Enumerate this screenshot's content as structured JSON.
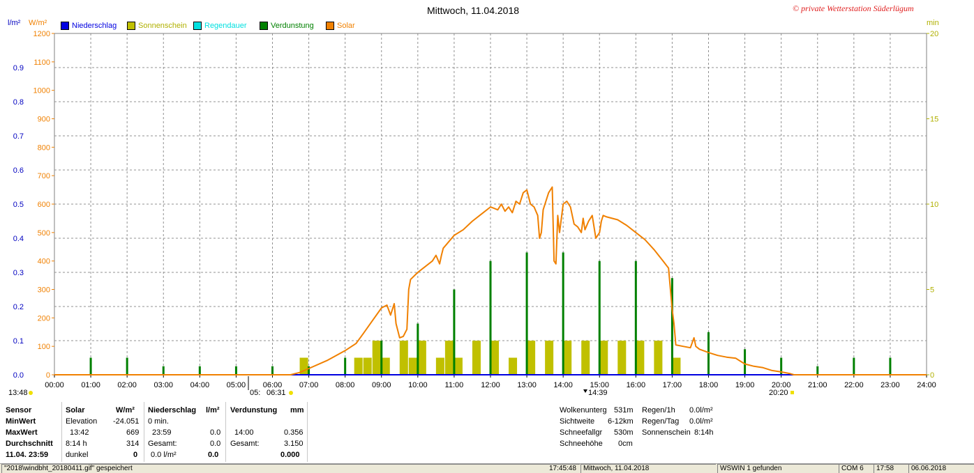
{
  "header": {
    "title": "Mittwoch, 11.04.2018",
    "copyright": "© private Wetterstation Süderlügum",
    "left_unit_1": "l/m²",
    "left_unit_2": "W/m²",
    "right_unit": "min"
  },
  "legend": [
    {
      "label": "Niederschlag",
      "color": "#0000e0"
    },
    {
      "label": "Sonnenschein",
      "color": "#c0c000"
    },
    {
      "label": "Regendauer",
      "color": "#00e0e0"
    },
    {
      "label": "Verdunstung",
      "color": "#008000"
    },
    {
      "label": "Solar",
      "color": "#f08000"
    }
  ],
  "chart_data": {
    "type": "line",
    "title": "Mittwoch, 11.04.2018",
    "x_range_hours": [
      0,
      24
    ],
    "x_tick_labels": [
      "00:00",
      "01:00",
      "02:00",
      "03:00",
      "04:00",
      "05:00",
      "06:00",
      "07:00",
      "08:00",
      "09:00",
      "10:00",
      "11:00",
      "12:00",
      "13:00",
      "14:00",
      "15:00",
      "16:00",
      "17:00",
      "18:00",
      "19:00",
      "20:00",
      "21:00",
      "22:00",
      "23:00",
      "24:00"
    ],
    "y_left_outer": {
      "unit": "l/m²",
      "range": [
        0,
        1.0
      ],
      "ticks": [
        "0.0",
        "0.1",
        "0.2",
        "0.3",
        "0.4",
        "0.5",
        "0.6",
        "0.7",
        "0.8",
        "0.9"
      ]
    },
    "y_left_inner": {
      "unit": "W/m²",
      "range": [
        0,
        1200
      ],
      "ticks": [
        "0",
        "100",
        "200",
        "300",
        "400",
        "500",
        "600",
        "700",
        "800",
        "900",
        "1000",
        "1100",
        "1200"
      ]
    },
    "y_right": {
      "unit": "min",
      "range": [
        0,
        20
      ],
      "ticks": [
        "0",
        "5",
        "10",
        "15",
        "20"
      ]
    },
    "grid": true,
    "series": [
      {
        "name": "Solar",
        "axis": "W/m²",
        "color": "#f08000",
        "points": [
          [
            0,
            0
          ],
          [
            6.5,
            0
          ],
          [
            6.75,
            8
          ],
          [
            7,
            22
          ],
          [
            7.5,
            50
          ],
          [
            8,
            85
          ],
          [
            8.3,
            110
          ],
          [
            8.5,
            145
          ],
          [
            8.75,
            190
          ],
          [
            9,
            235
          ],
          [
            9.15,
            245
          ],
          [
            9.25,
            210
          ],
          [
            9.35,
            250
          ],
          [
            9.4,
            180
          ],
          [
            9.5,
            130
          ],
          [
            9.6,
            135
          ],
          [
            9.7,
            160
          ],
          [
            9.75,
            300
          ],
          [
            9.8,
            335
          ],
          [
            10,
            360
          ],
          [
            10.2,
            380
          ],
          [
            10.4,
            400
          ],
          [
            10.5,
            420
          ],
          [
            10.55,
            405
          ],
          [
            10.6,
            390
          ],
          [
            10.65,
            420
          ],
          [
            10.7,
            445
          ],
          [
            10.8,
            460
          ],
          [
            11,
            490
          ],
          [
            11.25,
            510
          ],
          [
            11.5,
            540
          ],
          [
            11.75,
            565
          ],
          [
            12,
            590
          ],
          [
            12.1,
            585
          ],
          [
            12.2,
            580
          ],
          [
            12.3,
            600
          ],
          [
            12.4,
            575
          ],
          [
            12.5,
            590
          ],
          [
            12.6,
            570
          ],
          [
            12.7,
            610
          ],
          [
            12.8,
            600
          ],
          [
            12.9,
            640
          ],
          [
            13,
            650
          ],
          [
            13.1,
            600
          ],
          [
            13.2,
            590
          ],
          [
            13.3,
            560
          ],
          [
            13.35,
            480
          ],
          [
            13.4,
            500
          ],
          [
            13.45,
            580
          ],
          [
            13.5,
            600
          ],
          [
            13.6,
            640
          ],
          [
            13.7,
            660
          ],
          [
            13.75,
            400
          ],
          [
            13.8,
            390
          ],
          [
            13.85,
            560
          ],
          [
            13.9,
            500
          ],
          [
            14,
            600
          ],
          [
            14.1,
            610
          ],
          [
            14.2,
            590
          ],
          [
            14.3,
            530
          ],
          [
            14.4,
            520
          ],
          [
            14.5,
            500
          ],
          [
            14.55,
            550
          ],
          [
            14.6,
            510
          ],
          [
            14.7,
            540
          ],
          [
            14.8,
            560
          ],
          [
            14.9,
            480
          ],
          [
            15,
            500
          ],
          [
            15.05,
            540
          ],
          [
            15.1,
            560
          ],
          [
            15.2,
            555
          ],
          [
            15.5,
            545
          ],
          [
            15.75,
            525
          ],
          [
            16,
            500
          ],
          [
            16.25,
            475
          ],
          [
            16.5,
            440
          ],
          [
            16.75,
            400
          ],
          [
            16.9,
            375
          ],
          [
            17,
            230
          ],
          [
            17.05,
            180
          ],
          [
            17.1,
            105
          ],
          [
            17.3,
            100
          ],
          [
            17.5,
            95
          ],
          [
            17.6,
            130
          ],
          [
            17.65,
            100
          ],
          [
            17.75,
            90
          ],
          [
            18,
            78
          ],
          [
            18.25,
            68
          ],
          [
            18.5,
            62
          ],
          [
            18.75,
            58
          ],
          [
            18.85,
            50
          ],
          [
            19,
            38
          ],
          [
            19.25,
            30
          ],
          [
            19.5,
            25
          ],
          [
            19.75,
            15
          ],
          [
            20,
            10
          ],
          [
            20.25,
            4
          ],
          [
            20.35,
            0
          ],
          [
            24,
            0
          ]
        ]
      },
      {
        "name": "Verdunstung",
        "axis": "W/m²",
        "color": "#008000",
        "bars": [
          [
            1,
            60
          ],
          [
            2,
            60
          ],
          [
            3,
            30
          ],
          [
            4,
            30
          ],
          [
            5,
            30
          ],
          [
            6,
            30
          ],
          [
            7,
            30
          ],
          [
            8,
            60
          ],
          [
            9,
            120
          ],
          [
            10,
            180
          ],
          [
            11,
            300
          ],
          [
            12,
            400
          ],
          [
            13,
            430
          ],
          [
            14,
            430
          ],
          [
            15,
            400
          ],
          [
            16,
            400
          ],
          [
            17,
            340
          ],
          [
            18,
            150
          ],
          [
            19,
            90
          ],
          [
            20,
            60
          ],
          [
            21,
            30
          ],
          [
            22,
            60
          ],
          [
            23,
            60
          ]
        ]
      },
      {
        "name": "Sonnenschein",
        "axis": "min",
        "color": "#c0c000",
        "bars": [
          [
            6.75,
            1.0
          ],
          [
            8.25,
            1.0
          ],
          [
            8.5,
            1.0
          ],
          [
            8.75,
            2.0
          ],
          [
            9.0,
            1.0
          ],
          [
            9.5,
            2.0
          ],
          [
            9.75,
            1.0
          ],
          [
            10.0,
            2.0
          ],
          [
            10.5,
            1.0
          ],
          [
            10.75,
            2.0
          ],
          [
            11,
            1.0
          ],
          [
            11.5,
            2.0
          ],
          [
            12,
            2.0
          ],
          [
            12.5,
            1.0
          ],
          [
            13,
            2.0
          ],
          [
            13.5,
            2.0
          ],
          [
            14,
            2.0
          ],
          [
            14.5,
            2.0
          ],
          [
            15,
            2.0
          ],
          [
            15.5,
            2.0
          ],
          [
            16,
            2.0
          ],
          [
            16.5,
            2.0
          ],
          [
            17,
            1.0
          ]
        ]
      },
      {
        "name": "Niederschlag",
        "axis": "l/m²",
        "color": "#0000e0",
        "points": [
          [
            0,
            0
          ],
          [
            24,
            0
          ]
        ]
      }
    ],
    "markers": {
      "min_time": "13:48",
      "sunrise": "05:",
      "sunrise2": "06:31",
      "max_time": "14:39",
      "sunset": "20:20"
    }
  },
  "stats": {
    "row_labels": [
      "Sensor",
      "MinWert",
      "MaxWert",
      "Durchschnitt",
      "11.04. 23:59"
    ],
    "solar": {
      "header": "Solar",
      "unit": "W/m²",
      "r1_label": "Elevation",
      "r1_val": "-24.051",
      "r2_label": "13:42",
      "r2_val": "669",
      "r3_label": "8:14 h",
      "r3_val": "314",
      "r4_label": "dunkel",
      "r4_val": "0"
    },
    "niederschlag": {
      "header": "Niederschlag",
      "unit": "l/m²",
      "r1_label": "0 min.",
      "r1_val": "",
      "r2_label": "23:59",
      "r2_val": "0.0",
      "r3_label": "Gesamt:",
      "r3_val": "0.0",
      "r4_label": "0.0 l/m²",
      "r4_val": "0.0"
    },
    "verdunstung": {
      "header": "Verdunstung",
      "unit": "mm",
      "r1_label": "",
      "r1_val": "",
      "r2_label": "14:00",
      "r2_val": "0.356",
      "r3_label": "Gesamt:",
      "r3_val": "3.150",
      "r4_label": "",
      "r4_val": "0.000"
    },
    "cloud": [
      {
        "label": "Wolkenunterg",
        "value": "531m"
      },
      {
        "label": "Sichtweite",
        "value": "6-12km"
      },
      {
        "label": "Schneefallgr",
        "value": "530m"
      },
      {
        "label": "Schneehöhe",
        "value": "0cm"
      }
    ],
    "rain": [
      {
        "label": "Regen/1h",
        "value": "0.0l/m²"
      },
      {
        "label": "Regen/Tag",
        "value": "0.0l/m²"
      },
      {
        "label": "Sonnenschein",
        "value": "8:14h"
      }
    ]
  },
  "statusbar": {
    "file": "\"2018\\windbht_20180411.gif\" gespeichert",
    "time": "17:45:48",
    "date": "Mittwoch, 11.04.2018",
    "wswin": "WSWIN 1 gefunden",
    "com": "COM 6",
    "clock": "17:58",
    "today": "06.06.2018"
  }
}
